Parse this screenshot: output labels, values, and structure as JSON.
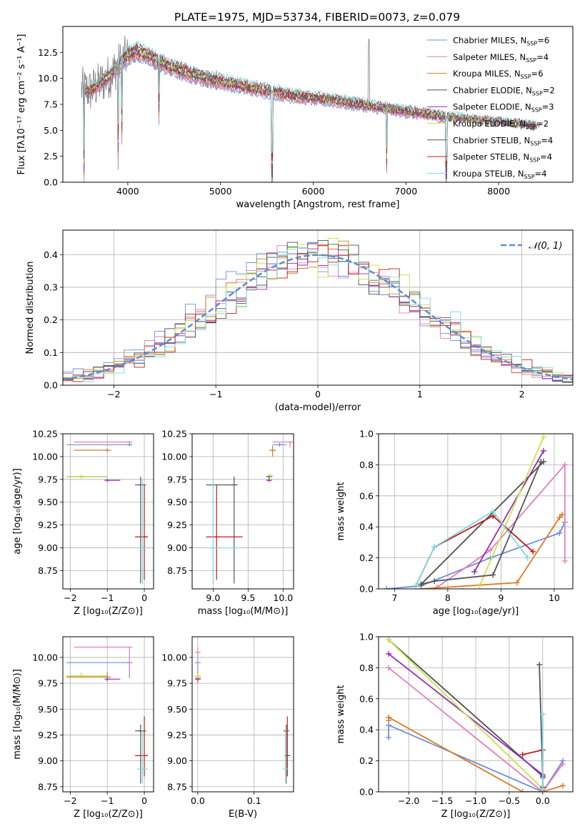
{
  "figure": {
    "title": "PLATE=1975, MJD=53734, FIBERID=0073, z=0.079"
  },
  "colors": {
    "chabrier_miles": "#6d8fe0",
    "salpeter_miles": "#e27fbf",
    "kroupa_miles": "#dd7a26",
    "chabrier_elodie": "#4e4e4e",
    "salpeter_elodie": "#9a2bb5",
    "kroupa_elodie": "#c6e44a",
    "chabrier_stelib": "#555555",
    "salpeter_stelib": "#c31a1a",
    "kroupa_stelib": "#7dd9e0",
    "data": "#808080",
    "normal": "#5b8dd6",
    "grid": "#b0b0b0"
  },
  "legend_spectrum": [
    {
      "model": "Chabrier MILES",
      "n": "6",
      "color_key": "chabrier_miles"
    },
    {
      "model": "Salpeter MILES",
      "n": "4",
      "color_key": "salpeter_miles"
    },
    {
      "model": "Kroupa MILES",
      "n": "6",
      "color_key": "kroupa_miles"
    },
    {
      "model": "Chabrier ELODIE",
      "n": "2",
      "color_key": "chabrier_elodie"
    },
    {
      "model": "Salpeter ELODIE",
      "n": "3",
      "color_key": "salpeter_elodie"
    },
    {
      "model": "Kroupa ELODIE",
      "n": "2",
      "color_key": "kroupa_elodie"
    },
    {
      "model": "Chabrier STELIB",
      "n": "4",
      "color_key": "chabrier_stelib"
    },
    {
      "model": "Salpeter STELIB",
      "n": "4",
      "color_key": "salpeter_stelib"
    },
    {
      "model": "Kroupa STELIB",
      "n": "4",
      "color_key": "kroupa_stelib"
    }
  ],
  "chart_data": [
    {
      "id": "spectrum",
      "type": "line",
      "xlabel": "wavelength [Angstrom, rest frame]",
      "ylabel": "Flux [fλ10⁻¹⁷ erg cm⁻² s⁻¹ A⁻¹]",
      "xlim": [
        3300,
        8800
      ],
      "ylim": [
        0,
        15
      ],
      "xticks": [
        4000,
        5000,
        6000,
        7000,
        8000
      ],
      "yticks": [
        0.0,
        2.5,
        5.0,
        7.5,
        10.0,
        12.5
      ],
      "ytick_labels": [
        "0.0",
        "2.5",
        "5.0",
        "7.5",
        "10.0",
        "12.5"
      ],
      "legend_position": "top-right",
      "continuum": {
        "x": [
          3500,
          3600,
          3700,
          3800,
          3900,
          4000,
          4100,
          4200,
          4400,
          4600,
          4800,
          5000,
          5200,
          5500,
          5800,
          6000,
          6200,
          6500,
          6800,
          7000,
          7200,
          7400,
          7600,
          7800,
          8000,
          8200,
          8400
        ],
        "y": [
          9.0,
          8.8,
          9.5,
          10.2,
          11.3,
          12.2,
          12.6,
          12.2,
          11.3,
          10.6,
          10.1,
          9.7,
          9.3,
          8.8,
          8.3,
          8.1,
          7.9,
          7.5,
          7.1,
          6.8,
          6.6,
          6.3,
          6.1,
          5.9,
          5.8,
          5.6,
          5.4
        ]
      },
      "absorption_features": [
        {
          "x": 3528,
          "depth": 9.0
        },
        {
          "x": 3895,
          "depth": 9.5
        },
        {
          "x": 3935,
          "depth": 7.5
        },
        {
          "x": 4335,
          "depth": 5.5
        },
        {
          "x": 5555,
          "depth": 9.0
        },
        {
          "x": 6790,
          "depth": 6.0
        },
        {
          "x": 7435,
          "depth": 6.5
        }
      ]
    },
    {
      "id": "residuals",
      "type": "histogram",
      "xlabel": "(data-model)/error",
      "ylabel": "Normed distribution",
      "xlim": [
        -2.5,
        2.5
      ],
      "ylim": [
        0,
        0.475
      ],
      "xticks": [
        -2,
        -1,
        0,
        1,
        2
      ],
      "yticks": [
        0.0,
        0.1,
        0.2,
        0.3,
        0.4
      ],
      "ytick_labels": [
        "0.0",
        "0.1",
        "0.2",
        "0.3",
        "0.4"
      ],
      "bin_width": 0.1,
      "legend_position": "top-right",
      "normal_label": "𝒩(0, 1)"
    },
    {
      "id": "age_vs_Z",
      "type": "errorbar",
      "xlabel": "Z [log₁₀(Z/Z⊙)]",
      "ylabel": "age  [log₁₀(age/yr)]",
      "xlim": [
        -2.2,
        0.25
      ],
      "ylim": [
        8.55,
        10.25
      ],
      "xticks": [
        -2,
        -1,
        0
      ],
      "yticks": [
        8.75,
        9.0,
        9.25,
        9.5,
        9.75,
        10.0,
        10.25
      ],
      "ytick_labels": [
        "8.75",
        "9.00",
        "9.25",
        "9.50",
        "9.75",
        "10.00",
        "10.25"
      ],
      "points": [
        {
          "c": "chabrier_miles",
          "x": -0.4,
          "y": 10.13,
          "xlo": -2.1,
          "xhi": -0.35,
          "ylo": 10.11,
          "yhi": 10.15
        },
        {
          "c": "salpeter_miles",
          "x": -0.4,
          "y": 10.16,
          "xlo": -1.9,
          "xhi": -0.4,
          "ylo": 10.14,
          "yhi": 10.17
        },
        {
          "c": "kroupa_miles",
          "x": -1.0,
          "y": 10.07,
          "xlo": -1.9,
          "xhi": -0.9,
          "ylo": 10.05,
          "yhi": 10.09
        },
        {
          "c": "chabrier_elodie",
          "x": -1.7,
          "y": 9.78,
          "xlo": -2.1,
          "xhi": -1.0,
          "ylo": 9.76,
          "yhi": 9.8
        },
        {
          "c": "salpeter_elodie",
          "x": -1.0,
          "y": 9.74,
          "xlo": -1.0,
          "xhi": -0.65,
          "ylo": 9.72,
          "yhi": 9.76
        },
        {
          "c": "kroupa_elodie",
          "x": -1.7,
          "y": 9.78,
          "xlo": -2.1,
          "xhi": -1.0,
          "ylo": 9.76,
          "yhi": 9.8
        },
        {
          "c": "chabrier_stelib",
          "x": -0.1,
          "y": 9.69,
          "xlo": -0.25,
          "xhi": 0.05,
          "ylo": 8.61,
          "yhi": 9.78
        },
        {
          "c": "salpeter_stelib",
          "x": 0.0,
          "y": 9.12,
          "xlo": -0.25,
          "xhi": 0.1,
          "ylo": 8.65,
          "yhi": 9.69
        },
        {
          "c": "kroupa_stelib",
          "x": -0.05,
          "y": 9.0,
          "xlo": -0.2,
          "xhi": 0.1,
          "ylo": 8.6,
          "yhi": 9.75
        }
      ]
    },
    {
      "id": "age_vs_mass",
      "type": "errorbar",
      "xlabel": "mass [log₁₀(M/M⊙)]",
      "ylabel": "",
      "xlim": [
        8.7,
        10.15
      ],
      "ylim": [
        8.55,
        10.25
      ],
      "xticks": [
        9.0,
        9.5,
        10.0
      ],
      "xtick_labels": [
        "9.0",
        "9.5",
        "10.0"
      ],
      "yticks": [
        8.75,
        9.0,
        9.25,
        9.5,
        9.75,
        10.0,
        10.25
      ],
      "ytick_labels": [
        "8.75",
        "9.00",
        "9.25",
        "9.50",
        "9.75",
        "10.00",
        "10.25"
      ],
      "points": [
        {
          "c": "chabrier_miles",
          "x": 9.95,
          "y": 10.13,
          "xlo": 9.85,
          "xhi": 10.05,
          "ylo": 10.11,
          "yhi": 10.15
        },
        {
          "c": "salpeter_miles",
          "x": 10.1,
          "y": 10.16,
          "xlo": 9.85,
          "xhi": 10.1,
          "ylo": 10.1,
          "yhi": 10.17
        },
        {
          "c": "kroupa_miles",
          "x": 9.85,
          "y": 10.07,
          "xlo": 9.8,
          "xhi": 9.9,
          "ylo": 10.0,
          "yhi": 10.12
        },
        {
          "c": "chabrier_elodie",
          "x": 9.8,
          "y": 9.78,
          "xlo": 9.78,
          "xhi": 9.83,
          "ylo": 9.76,
          "yhi": 9.8
        },
        {
          "c": "salpeter_elodie",
          "x": 9.8,
          "y": 9.74,
          "xlo": 9.78,
          "xhi": 9.83,
          "ylo": 9.72,
          "yhi": 9.76
        },
        {
          "c": "kroupa_elodie",
          "x": 9.82,
          "y": 9.79,
          "xlo": 9.8,
          "xhi": 9.84,
          "ylo": 9.77,
          "yhi": 9.81
        },
        {
          "c": "chabrier_stelib",
          "x": 9.3,
          "y": 9.69,
          "xlo": 8.9,
          "xhi": 9.35,
          "ylo": 8.61,
          "yhi": 9.78
        },
        {
          "c": "salpeter_stelib",
          "x": 9.05,
          "y": 9.12,
          "xlo": 8.9,
          "xhi": 9.42,
          "ylo": 8.65,
          "yhi": 9.69
        },
        {
          "c": "kroupa_stelib",
          "x": 9.0,
          "y": 9.0,
          "xlo": 8.9,
          "xhi": 9.35,
          "ylo": 8.6,
          "yhi": 9.75
        }
      ]
    },
    {
      "id": "massweight_vs_age",
      "type": "line",
      "xlabel": "age  [log₁₀(age/yr)]",
      "ylabel": "mass weight",
      "xlim": [
        6.7,
        10.35
      ],
      "ylim": [
        0,
        1
      ],
      "xticks": [
        7,
        8,
        9,
        10
      ],
      "yticks": [
        0.0,
        0.2,
        0.4,
        0.6,
        0.8,
        1.0
      ],
      "ytick_labels": [
        "0.0",
        "0.2",
        "0.4",
        "0.6",
        "0.8",
        "1.0"
      ],
      "series": [
        {
          "c": "chabrier_miles",
          "x": [
            6.85,
            7.5,
            8.8,
            10.1,
            10.2
          ],
          "y": [
            0.0,
            0.02,
            0.2,
            0.36,
            0.43
          ]
        },
        {
          "c": "salpeter_miles",
          "x": [
            7.8,
            8.8,
            10.2,
            10.2
          ],
          "y": [
            0.01,
            0.25,
            0.8,
            0.18
          ]
        },
        {
          "c": "kroupa_miles",
          "x": [
            7.5,
            9.3,
            10.1,
            10.15
          ],
          "y": [
            0.0,
            0.04,
            0.46,
            0.48
          ]
        },
        {
          "c": "chabrier_elodie",
          "x": [
            7.5,
            9.8
          ],
          "y": [
            0.03,
            0.82
          ]
        },
        {
          "c": "salpeter_elodie",
          "x": [
            8.5,
            9.8
          ],
          "y": [
            0.11,
            0.89
          ]
        },
        {
          "c": "kroupa_elodie",
          "x": [
            8.6,
            9.8
          ],
          "y": [
            0.02,
            0.98
          ]
        },
        {
          "c": "chabrier_stelib",
          "x": [
            7.5,
            7.75,
            8.85,
            9.75
          ],
          "y": [
            0.03,
            0.05,
            0.09,
            0.82
          ]
        },
        {
          "c": "salpeter_stelib",
          "x": [
            7.4,
            7.75,
            8.85,
            9.6
          ],
          "y": [
            0.02,
            0.27,
            0.47,
            0.24
          ]
        },
        {
          "c": "kroupa_stelib",
          "x": [
            7.4,
            7.75,
            8.85,
            9.5
          ],
          "y": [
            0.02,
            0.27,
            0.5,
            0.2
          ]
        }
      ]
    },
    {
      "id": "mass_vs_Z",
      "type": "errorbar",
      "xlabel": "Z [log₁₀(Z/Z⊙)]",
      "ylabel": "mass [log₁₀(M/M⊙)]",
      "xlim": [
        -2.2,
        0.25
      ],
      "ylim": [
        8.7,
        10.2
      ],
      "xticks": [
        -2,
        -1,
        0
      ],
      "yticks": [
        8.75,
        9.0,
        9.25,
        9.5,
        9.75,
        10.0
      ],
      "ytick_labels": [
        "8.75",
        "9.00",
        "9.25",
        "9.50",
        "9.75",
        "10.00"
      ],
      "points": [
        {
          "c": "chabrier_miles",
          "x": -0.4,
          "y": 9.95,
          "xlo": -2.1,
          "xhi": -0.35,
          "ylo": 9.8,
          "yhi": 9.95
        },
        {
          "c": "salpeter_miles",
          "x": -0.4,
          "y": 10.1,
          "xlo": -1.9,
          "xhi": -0.4,
          "ylo": 9.82,
          "yhi": 10.1
        },
        {
          "c": "kroupa_miles",
          "x": -1.0,
          "y": 9.81,
          "xlo": -2.1,
          "xhi": -0.9,
          "ylo": 9.77,
          "yhi": 9.86
        },
        {
          "c": "chabrier_elodie",
          "x": -1.7,
          "y": 9.82,
          "xlo": -2.1,
          "xhi": -1.0,
          "ylo": 9.8,
          "yhi": 9.85
        },
        {
          "c": "salpeter_elodie",
          "x": -1.0,
          "y": 9.79,
          "xlo": -1.0,
          "xhi": -0.65,
          "ylo": 9.77,
          "yhi": 9.81
        },
        {
          "c": "kroupa_elodie",
          "x": -1.7,
          "y": 9.82,
          "xlo": -2.1,
          "xhi": -1.0,
          "ylo": 9.8,
          "yhi": 9.85
        },
        {
          "c": "chabrier_stelib",
          "x": -0.1,
          "y": 9.29,
          "xlo": -0.25,
          "xhi": 0.05,
          "ylo": 8.78,
          "yhi": 9.35
        },
        {
          "c": "salpeter_stelib",
          "x": 0.0,
          "y": 9.05,
          "xlo": -0.25,
          "xhi": 0.1,
          "ylo": 8.85,
          "yhi": 9.43
        },
        {
          "c": "kroupa_stelib",
          "x": -0.05,
          "y": 8.92,
          "xlo": -0.2,
          "xhi": 0.1,
          "ylo": 8.78,
          "yhi": 9.3
        }
      ]
    },
    {
      "id": "mass_vs_ebv",
      "type": "errorbar",
      "xlabel": "E(B-V)",
      "ylabel": "",
      "xlim": [
        -0.01,
        0.17
      ],
      "ylim": [
        8.7,
        10.2
      ],
      "xticks": [
        0.0,
        0.1
      ],
      "xtick_labels": [
        "0.0",
        "0.1"
      ],
      "yticks": [
        8.75,
        9.0,
        9.25,
        9.5,
        9.75,
        10.0
      ],
      "ytick_labels": [
        "8.75",
        "9.00",
        "9.25",
        "9.50",
        "9.75",
        "10.00"
      ],
      "points": [
        {
          "c": "chabrier_miles",
          "x": 0.0,
          "y": 9.95,
          "xlo": 0.0,
          "xhi": 0.0,
          "ylo": 9.85,
          "yhi": 10.0
        },
        {
          "c": "salpeter_miles",
          "x": 0.0,
          "y": 10.05,
          "xlo": 0.0,
          "xhi": 0.0,
          "ylo": 9.9,
          "yhi": 10.1
        },
        {
          "c": "kroupa_miles",
          "x": 0.0,
          "y": 9.8,
          "xlo": 0.0,
          "xhi": 0.0,
          "ylo": 9.75,
          "yhi": 9.86
        },
        {
          "c": "chabrier_elodie",
          "x": 0.0,
          "y": 9.82,
          "xlo": 0.0,
          "xhi": 0.0,
          "ylo": 9.8,
          "yhi": 9.85
        },
        {
          "c": "salpeter_elodie",
          "x": 0.0,
          "y": 9.79,
          "xlo": 0.0,
          "xhi": 0.0,
          "ylo": 9.77,
          "yhi": 9.81
        },
        {
          "c": "kroupa_elodie",
          "x": 0.0,
          "y": 9.82,
          "xlo": 0.0,
          "xhi": 0.0,
          "ylo": 9.8,
          "yhi": 9.85
        },
        {
          "c": "chabrier_stelib",
          "x": 0.157,
          "y": 9.29,
          "xlo": 0.156,
          "xhi": 0.158,
          "ylo": 8.78,
          "yhi": 9.35
        },
        {
          "c": "salpeter_stelib",
          "x": 0.159,
          "y": 9.05,
          "xlo": 0.158,
          "xhi": 0.16,
          "ylo": 8.85,
          "yhi": 9.43
        },
        {
          "c": "kroupa_stelib",
          "x": 0.156,
          "y": 8.92,
          "xlo": 0.155,
          "xhi": 0.157,
          "ylo": 8.78,
          "yhi": 9.3
        }
      ]
    },
    {
      "id": "massweight_vs_Z",
      "type": "line",
      "xlabel": "Z [log₁₀(Z/Z⊙)]",
      "ylabel": "mass weight",
      "xlim": [
        -2.45,
        0.45
      ],
      "ylim": [
        0,
        1
      ],
      "xticks": [
        -2.0,
        -1.5,
        -1.0,
        -0.5,
        0.0
      ],
      "xtick_labels": [
        "−2.0",
        "−1.5",
        "−1.0",
        "−0.5",
        "0.0"
      ],
      "yticks": [
        0.0,
        0.2,
        0.4,
        0.6,
        0.8,
        1.0
      ],
      "ytick_labels": [
        "0.0",
        "0.2",
        "0.4",
        "0.6",
        "0.8",
        "1.0"
      ],
      "series": [
        {
          "c": "chabrier_miles",
          "x": [
            -2.3,
            -2.3,
            0.0,
            0.3
          ],
          "y": [
            0.35,
            0.43,
            0.0,
            0.2
          ]
        },
        {
          "c": "salpeter_miles",
          "x": [
            -2.3,
            0.0,
            0.3
          ],
          "y": [
            0.8,
            0.0,
            0.18
          ]
        },
        {
          "c": "kroupa_miles",
          "x": [
            -2.3,
            -2.3,
            -0.3,
            0.0,
            0.3
          ],
          "y": [
            0.46,
            0.48,
            0.0,
            0.0,
            0.04
          ]
        },
        {
          "c": "chabrier_elodie",
          "x": [
            -2.3,
            0.0
          ],
          "y": [
            0.98,
            0.1
          ]
        },
        {
          "c": "salpeter_elodie",
          "x": [
            -2.3,
            0.0
          ],
          "y": [
            0.89,
            0.11
          ]
        },
        {
          "c": "kroupa_elodie",
          "x": [
            -2.3,
            0.0
          ],
          "y": [
            0.98,
            0.02
          ]
        },
        {
          "c": "chabrier_stelib",
          "x": [
            -0.05,
            0.0,
            0.0
          ],
          "y": [
            0.82,
            0.09,
            0.03
          ]
        },
        {
          "c": "salpeter_stelib",
          "x": [
            -0.3,
            0.0,
            0.0
          ],
          "y": [
            0.24,
            0.27,
            0.02
          ]
        },
        {
          "c": "kroupa_stelib",
          "x": [
            0.0,
            0.0,
            0.0
          ],
          "y": [
            0.5,
            0.2,
            0.02
          ]
        }
      ]
    }
  ]
}
